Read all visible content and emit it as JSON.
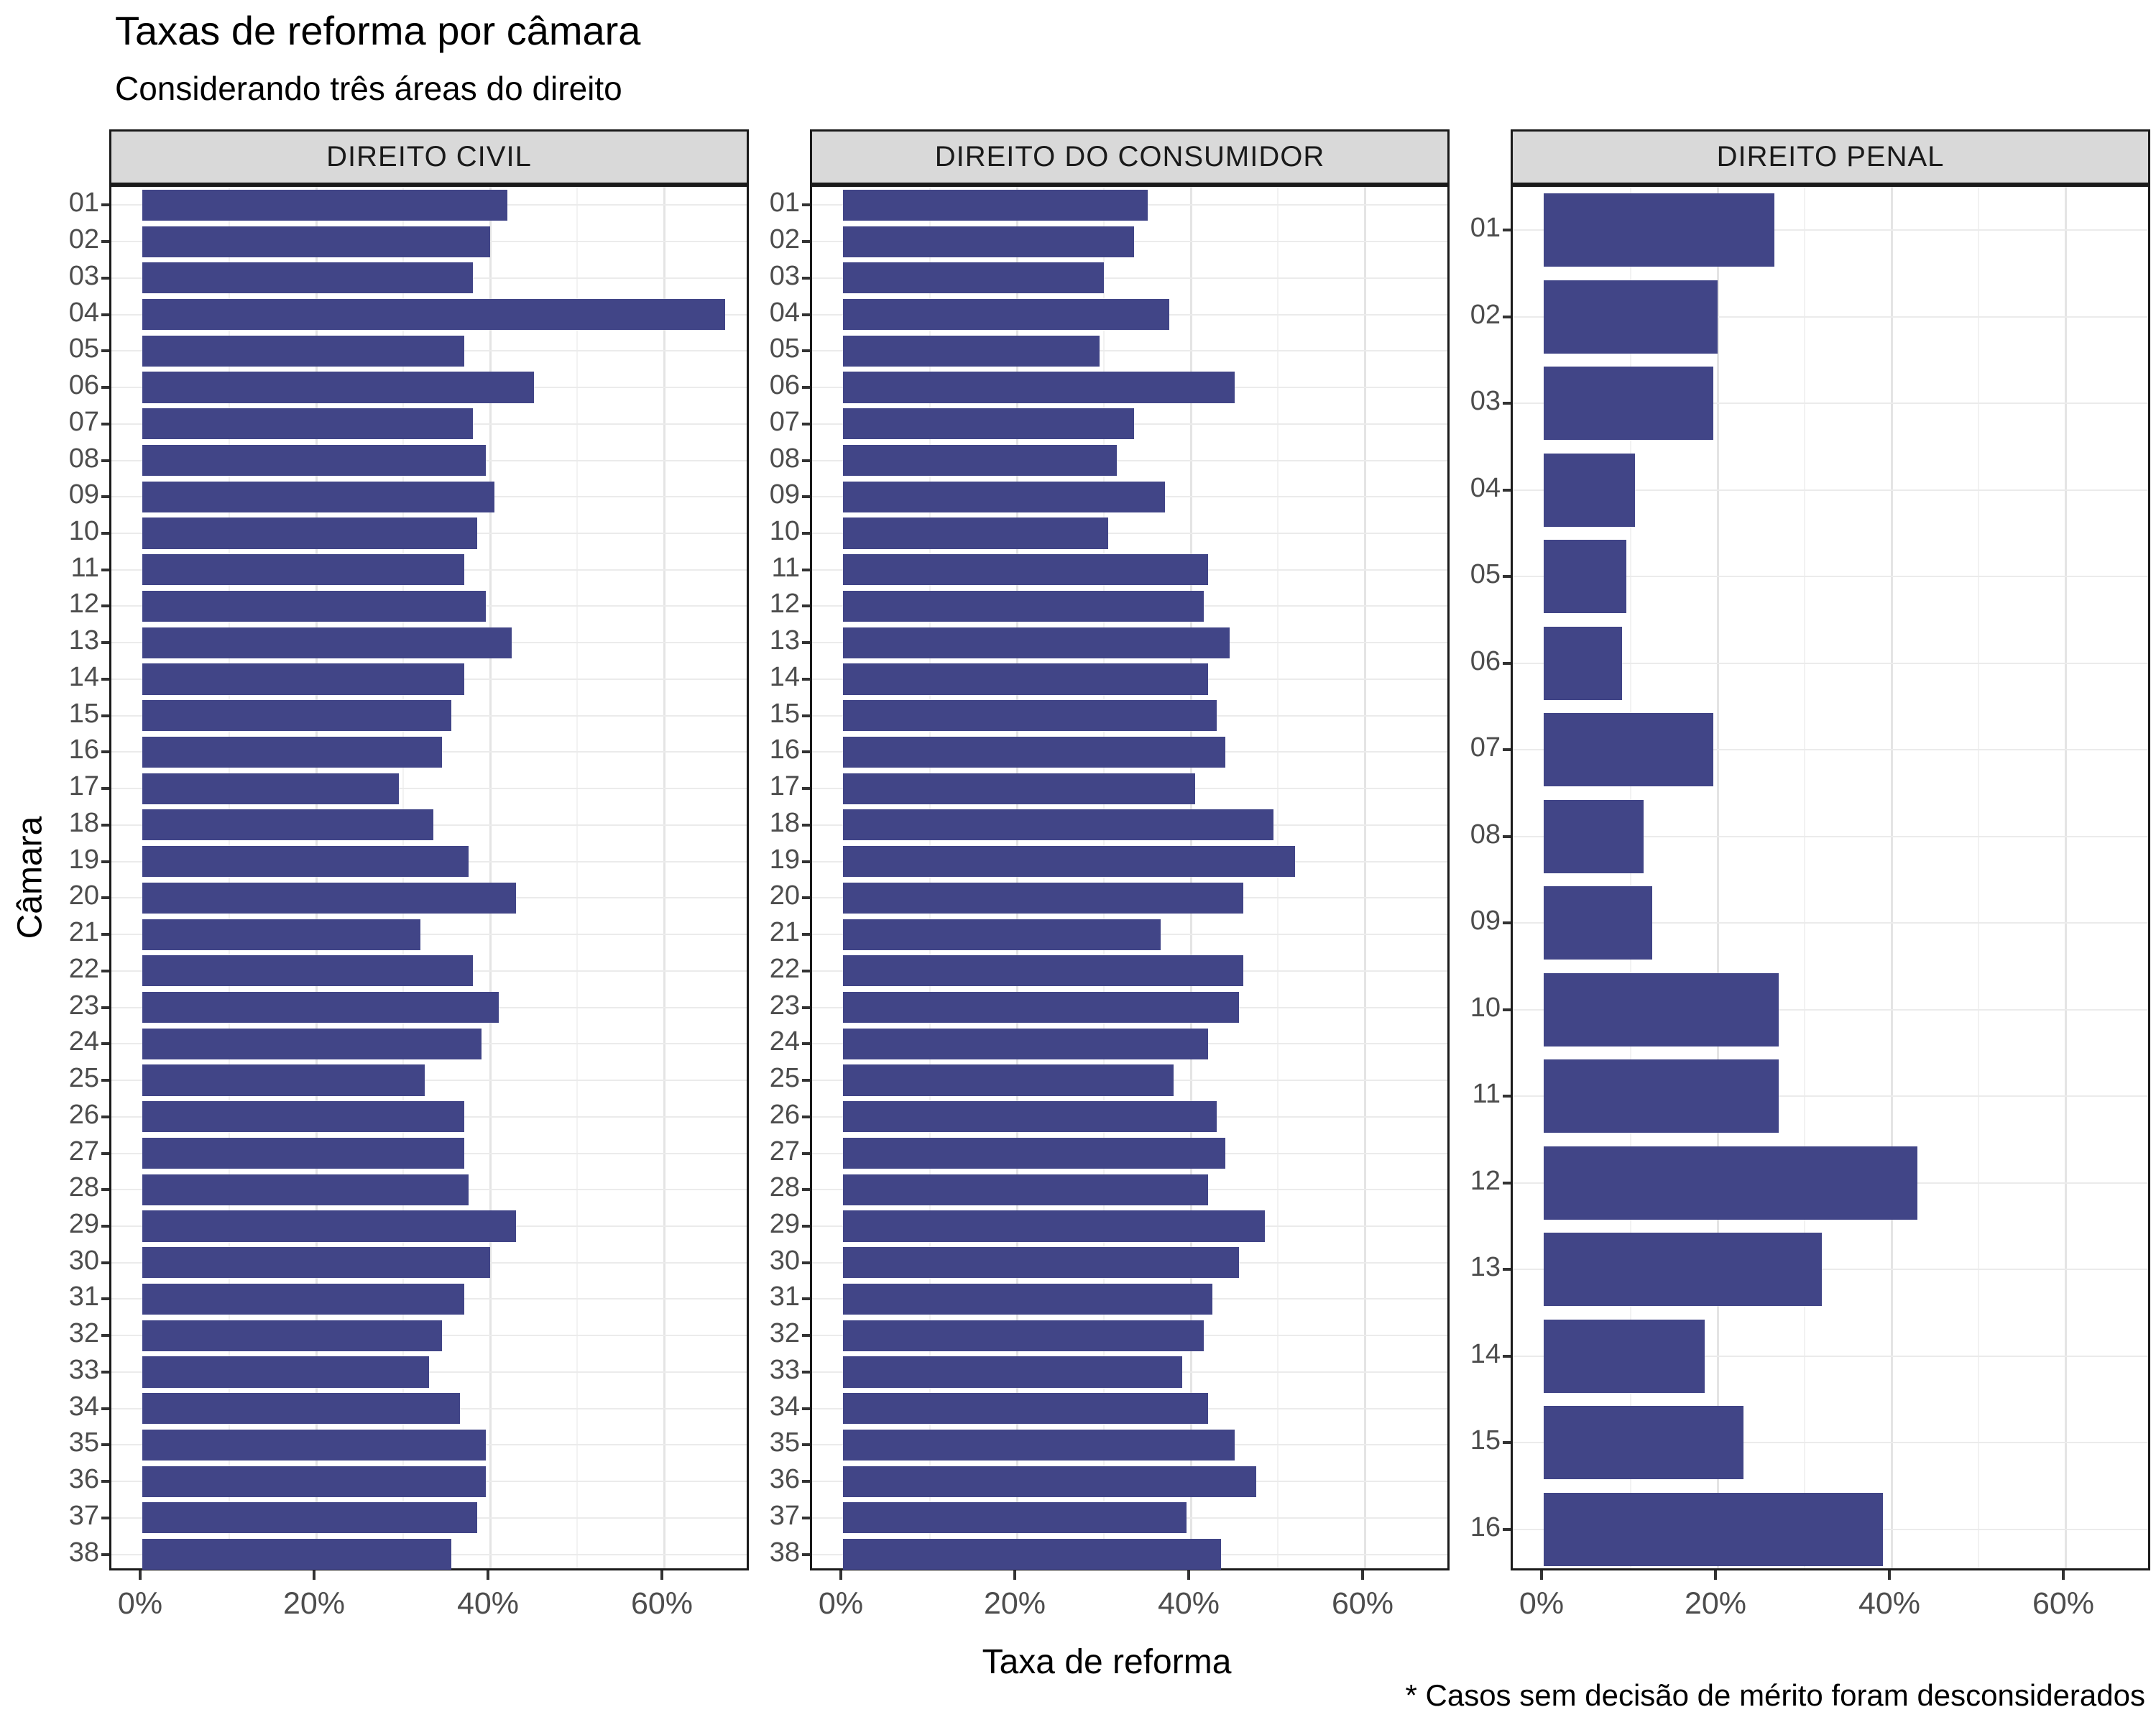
{
  "title": "Taxas de reforma por câmara",
  "subtitle": "Considerando três áreas do direito",
  "y_axis_title": "Câmara",
  "x_axis_title": "Taxa de reforma",
  "footnote": "* Casos sem decisão de mérito foram desconsiderados",
  "colors": {
    "bar": "#414587",
    "strip_background": "#D9D9D9",
    "panel_border": "#1A1A1A",
    "grid_major": "#E4E4E4",
    "grid_minor": "#F2F2F2",
    "grid_row": "#EBEBEB",
    "tick_mark": "#333333",
    "tick_text": "#4D4D4D"
  },
  "chart_data": {
    "type": "bar",
    "orientation": "horizontal",
    "title": "Taxas de reforma por câmara",
    "subtitle": "Considerando três áreas do direito",
    "xlabel": "Taxa de reforma",
    "ylabel": "Câmara",
    "xlim": [
      0,
      70
    ],
    "x_tick_values": [
      0,
      20,
      40,
      60
    ],
    "x_tick_labels": [
      "0%",
      "20%",
      "40%",
      "60%"
    ],
    "x_minor_gridlines": [
      10,
      30,
      50
    ],
    "grid": true,
    "unit": "percent",
    "panels": [
      {
        "label": "DIREITO CIVIL",
        "categories": [
          "01",
          "02",
          "03",
          "04",
          "05",
          "06",
          "07",
          "08",
          "09",
          "10",
          "11",
          "12",
          "13",
          "14",
          "15",
          "16",
          "17",
          "18",
          "19",
          "20",
          "21",
          "22",
          "23",
          "24",
          "25",
          "26",
          "27",
          "28",
          "29",
          "30",
          "31",
          "32",
          "33",
          "34",
          "35",
          "36",
          "37",
          "38"
        ],
        "values": [
          42,
          40,
          38,
          67,
          37,
          45,
          38,
          39.5,
          40.5,
          38.5,
          37,
          39.5,
          42.5,
          37,
          35.5,
          34.5,
          29.5,
          33.5,
          37.5,
          43,
          32,
          38,
          41,
          39,
          32.5,
          37,
          37,
          37.5,
          43,
          40,
          37,
          34.5,
          33,
          36.5,
          39.5,
          39.5,
          38.5,
          35.5
        ]
      },
      {
        "label": "DIREITO DO CONSUMIDOR",
        "categories": [
          "01",
          "02",
          "03",
          "04",
          "05",
          "06",
          "07",
          "08",
          "09",
          "10",
          "11",
          "12",
          "13",
          "14",
          "15",
          "16",
          "17",
          "18",
          "19",
          "20",
          "21",
          "22",
          "23",
          "24",
          "25",
          "26",
          "27",
          "28",
          "29",
          "30",
          "31",
          "32",
          "33",
          "34",
          "35",
          "36",
          "37",
          "38"
        ],
        "values": [
          35,
          33.5,
          30,
          37.5,
          29.5,
          45,
          33.5,
          31.5,
          37,
          30.5,
          42,
          41.5,
          44.5,
          42,
          43,
          44,
          40.5,
          49.5,
          52,
          46,
          36.5,
          46,
          45.5,
          42,
          38,
          43,
          44,
          42,
          48.5,
          45.5,
          42.5,
          41.5,
          39,
          42,
          45,
          47.5,
          39.5,
          43.5
        ]
      },
      {
        "label": "DIREITO PENAL",
        "categories": [
          "01",
          "02",
          "03",
          "04",
          "05",
          "06",
          "07",
          "08",
          "09",
          "10",
          "11",
          "12",
          "13",
          "14",
          "15",
          "16"
        ],
        "values": [
          26.5,
          20,
          19.5,
          10.5,
          9.5,
          9,
          19.5,
          11.5,
          12.5,
          27,
          27,
          43,
          32,
          18.5,
          23,
          39
        ]
      }
    ]
  }
}
